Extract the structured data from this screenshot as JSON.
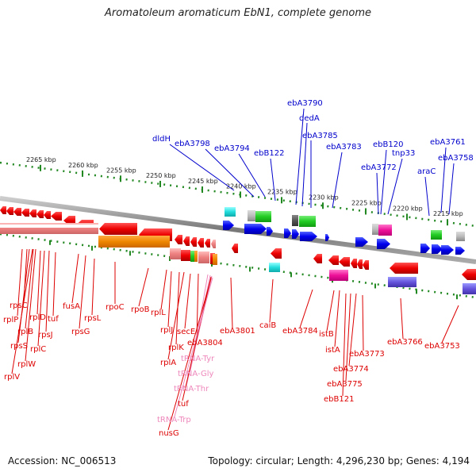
{
  "title": "Aromatoleum aromaticum EbN1, complete genome",
  "footer": {
    "accession": "Accession: NC_006513",
    "summary": "Topology: circular; Length: 4,296,230 bp; Genes: 4,194"
  },
  "scale_labels": [
    "2265 kbp",
    "2260 kbp",
    "2255 kbp",
    "2250 kbp",
    "2245 kbp",
    "2240 kbp",
    "2235 kbp",
    "2230 kbp",
    "2225 kbp",
    "2220 kbp",
    "2215 kbp"
  ],
  "top_labels": [
    "ebA3790",
    "dedA",
    "ebA3785",
    "dldH",
    "ebA3798",
    "ebA3794",
    "ebB122",
    "ebA3783",
    "ebB120",
    "tnp33",
    "ebA3772",
    "ebA3761",
    "ebA3758",
    "araC"
  ],
  "bottom_labels": [
    "rpsC",
    "rplP",
    "rplB",
    "rpsS",
    "rplW",
    "rplV",
    "rplD",
    "rplC",
    "rpsJ",
    "tuf",
    "fusA",
    "rpsG",
    "rpsL",
    "rpoC",
    "rpoB",
    "rplL",
    "rplJ",
    "rplK",
    "rplA",
    "secE",
    "ebA3804",
    "tRNA-Tyr",
    "tRNA-Gly",
    "tRNA-Thr",
    "tuf",
    "tRNA-Trp",
    "nusG",
    "ebA3801",
    "caiB",
    "ebA3784",
    "istB",
    "istA",
    "ebA3773",
    "ebA3774",
    "ebA3775",
    "ebB121",
    "ebA3766",
    "ebA3753"
  ],
  "colors": {
    "label_red": "#dd0000",
    "label_blue": "#0000cc",
    "label_pink": "#ee88bb",
    "scale_green": "#228822",
    "backbone": "#888888"
  }
}
